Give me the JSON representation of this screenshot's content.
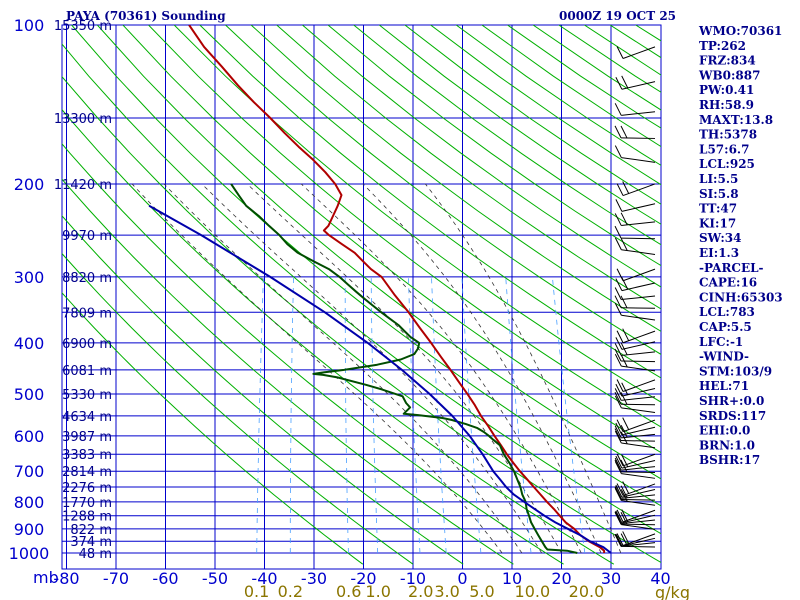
{
  "chart_data": {
    "type": "skew-t",
    "title": "PAYA (70361) Sounding",
    "datetime": "0000Z 19 OCT 25",
    "p_unit_label": "mb",
    "w_unit_label": "g/kg",
    "pressure_levels": [
      100,
      200,
      300,
      400,
      500,
      600,
      700,
      800,
      900,
      1000
    ],
    "height_labels": [
      {
        "p": 100,
        "label": "15350 m"
      },
      {
        "p": 150,
        "label": "13300 m"
      },
      {
        "p": 200,
        "label": "11420 m"
      },
      {
        "p": 250,
        "label": "9970 m"
      },
      {
        "p": 300,
        "label": "8820 m"
      },
      {
        "p": 350,
        "label": "7809 m"
      },
      {
        "p": 400,
        "label": "6900 m"
      },
      {
        "p": 450,
        "label": "6081 m"
      },
      {
        "p": 500,
        "label": "5330 m"
      },
      {
        "p": 550,
        "label": "4634 m"
      },
      {
        "p": 600,
        "label": "3987 m"
      },
      {
        "p": 650,
        "label": "3383 m"
      },
      {
        "p": 700,
        "label": "2814 m"
      },
      {
        "p": 750,
        "label": "2276 m"
      },
      {
        "p": 800,
        "label": "1770 m"
      },
      {
        "p": 850,
        "label": "1288 m"
      },
      {
        "p": 900,
        "label": "822 m"
      },
      {
        "p": 950,
        "label": "374 m"
      },
      {
        "p": 1000,
        "label": "48 m"
      }
    ],
    "temperature_ticks": [
      -80,
      -70,
      -60,
      -50,
      -40,
      -30,
      -20,
      -10,
      0,
      10,
      20,
      30,
      40
    ],
    "temperature_tick_labels": [
      "-80",
      "-70",
      "-60",
      "-50",
      "-40",
      "-30",
      "-20",
      "-10",
      "0",
      "10",
      "20",
      "30",
      "40"
    ],
    "mixing_ratio_labels": [
      {
        "w": 0.1,
        "label": "0.1"
      },
      {
        "w": 0.2,
        "label": "0.2"
      },
      {
        "w": 0.6,
        "label": "0.6"
      },
      {
        "w": 1.0,
        "label": "1.0"
      },
      {
        "w": 2.0,
        "label": "2.0"
      },
      {
        "w": 3.0,
        "label": "3.0"
      },
      {
        "w": 5.0,
        "label": "5.0"
      },
      {
        "w": 10.0,
        "label": "10.0"
      },
      {
        "w": 20.0,
        "label": "20.0"
      }
    ],
    "series": [
      {
        "name": "temperature",
        "color": "#b00000",
        "points": [
          [
            1000,
            28.6
          ],
          [
            990,
            28.5
          ],
          [
            975,
            27.5
          ],
          [
            950,
            25
          ],
          [
            925,
            23
          ],
          [
            900,
            21.5
          ],
          [
            875,
            19.5
          ],
          [
            850,
            18
          ],
          [
            825,
            16.5
          ],
          [
            800,
            14.8
          ],
          [
            775,
            13.2
          ],
          [
            750,
            11.5
          ],
          [
            725,
            9.8
          ],
          [
            700,
            8
          ],
          [
            675,
            6.3
          ],
          [
            650,
            4.6
          ],
          [
            625,
            3
          ],
          [
            600,
            1.3
          ],
          [
            575,
            -0.4
          ],
          [
            550,
            -2.3
          ],
          [
            525,
            -4
          ],
          [
            500,
            -6
          ],
          [
            475,
            -8.2
          ],
          [
            450,
            -10.5
          ],
          [
            425,
            -13
          ],
          [
            400,
            -15.6
          ],
          [
            375,
            -18.5
          ],
          [
            350,
            -21.5
          ],
          [
            325,
            -25
          ],
          [
            300,
            -28.5
          ],
          [
            290,
            -31
          ],
          [
            280,
            -33
          ],
          [
            270,
            -35
          ],
          [
            260,
            -38
          ],
          [
            250,
            -41
          ],
          [
            245,
            -42.2
          ],
          [
            240,
            -41.5
          ],
          [
            230,
            -41
          ],
          [
            220,
            -40.5
          ],
          [
            210,
            -40.2
          ],
          [
            200,
            -42
          ],
          [
            190,
            -44.5
          ],
          [
            180,
            -47.5
          ],
          [
            170,
            -51
          ],
          [
            160,
            -54.5
          ],
          [
            150,
            -58
          ],
          [
            140,
            -62
          ],
          [
            130,
            -66
          ],
          [
            120,
            -70
          ],
          [
            110,
            -74.5
          ],
          [
            100,
            -78.5
          ]
        ]
      },
      {
        "name": "dewpoint",
        "color": "#004d00",
        "points": [
          [
            1000,
            23.2
          ],
          [
            990,
            21
          ],
          [
            985,
            17
          ],
          [
            975,
            16.5
          ],
          [
            950,
            15.5
          ],
          [
            925,
            14.5
          ],
          [
            900,
            13.5
          ],
          [
            875,
            12.5
          ],
          [
            850,
            11.8
          ],
          [
            825,
            11
          ],
          [
            800,
            10.5
          ],
          [
            775,
            9.5
          ],
          [
            750,
            8.8
          ],
          [
            725,
            7.8
          ],
          [
            700,
            6.8
          ],
          [
            675,
            5.5
          ],
          [
            650,
            4
          ],
          [
            625,
            2.8
          ],
          [
            610,
            1.2
          ],
          [
            600,
            0.2
          ],
          [
            590,
            -1
          ],
          [
            580,
            -2.5
          ],
          [
            570,
            -5
          ],
          [
            560,
            -8
          ],
          [
            555,
            -10
          ],
          [
            548,
            -15
          ],
          [
            545,
            -18
          ],
          [
            530,
            -17
          ],
          [
            520,
            -18
          ],
          [
            505,
            -19
          ],
          [
            490,
            -23.5
          ],
          [
            480,
            -27
          ],
          [
            465,
            -33
          ],
          [
            460,
            -36
          ],
          [
            458,
            -38
          ],
          [
            455,
            -36
          ],
          [
            450,
            -32
          ],
          [
            440,
            -25.5
          ],
          [
            430,
            -21
          ],
          [
            420,
            -18.5
          ],
          [
            410,
            -18
          ],
          [
            400,
            -18
          ],
          [
            395,
            -19
          ],
          [
            390,
            -20
          ],
          [
            380,
            -21.5
          ],
          [
            370,
            -23
          ],
          [
            360,
            -25
          ],
          [
            350,
            -27
          ],
          [
            340,
            -29
          ],
          [
            330,
            -31
          ],
          [
            320,
            -33
          ],
          [
            310,
            -35
          ],
          [
            300,
            -37
          ],
          [
            290,
            -39.5
          ],
          [
            280,
            -43
          ],
          [
            270,
            -46.5
          ],
          [
            260,
            -49
          ],
          [
            250,
            -51
          ],
          [
            240,
            -53.5
          ],
          [
            230,
            -56
          ],
          [
            220,
            -59
          ],
          [
            210,
            -61
          ],
          [
            200,
            -63
          ]
        ]
      },
      {
        "name": "parcel",
        "color": "#0000aa",
        "points": [
          [
            1000,
            30
          ],
          [
            975,
            28.2
          ],
          [
            950,
            25.2
          ],
          [
            925,
            23
          ],
          [
            900,
            20.2
          ],
          [
            875,
            17.4
          ],
          [
            850,
            14.9
          ],
          [
            825,
            12.6
          ],
          [
            800,
            10.2
          ],
          [
            775,
            7.8
          ],
          [
            750,
            5.9
          ],
          [
            725,
            4.3
          ],
          [
            700,
            2.6
          ],
          [
            650,
            -0.3
          ],
          [
            600,
            -3.7
          ],
          [
            550,
            -8.1
          ],
          [
            500,
            -13.6
          ],
          [
            450,
            -20.3
          ],
          [
            400,
            -28.4
          ],
          [
            350,
            -38.4
          ],
          [
            300,
            -51
          ],
          [
            250,
            -66.8
          ],
          [
            220,
            -78.6
          ]
        ]
      }
    ],
    "wind_barbs_note": "wind barbs plotted along right edge",
    "indices": [
      "WMO:70361",
      "TP:262",
      "FRZ:834",
      "WB0:887",
      "PW:0.41",
      "RH:58.9",
      "MAXT:13.8",
      "TH:5378",
      "L57:6.7",
      "LCL:925",
      "LI:5.5",
      "SI:5.8",
      "TT:47",
      "KI:17",
      "SW:34",
      "EI:1.3",
      "-PARCEL-",
      "CAPE:16",
      "CINH:65303",
      "LCL:783",
      "CAP:5.5",
      "LFC:-1",
      "-WIND-",
      "STM:103/9",
      "HEL:71",
      "SHR+:0.0",
      "SRDS:117",
      "EHI:0.0",
      "BRN:1.0",
      "BSHR:17"
    ]
  }
}
